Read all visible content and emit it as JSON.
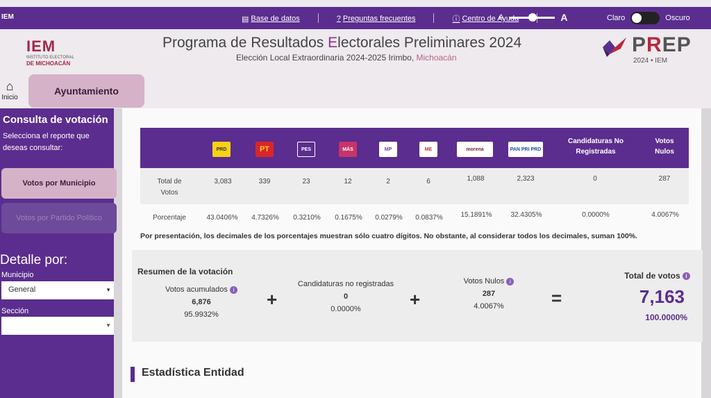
{
  "topbar": {
    "logo": "IEM",
    "links": [
      {
        "icon": "database-icon",
        "label": "Base de datos"
      },
      {
        "icon": "question-icon",
        "label": "Preguntas frecuentes"
      },
      {
        "icon": "info-icon",
        "label": "Centro de Ayuda"
      }
    ],
    "font_small": "A",
    "font_large": "A",
    "theme_light": "Claro",
    "theme_dark": "Oscuro"
  },
  "header": {
    "iem_logo": "IEM",
    "iem_small": "INSTITUTO ELECTORAL",
    "iem_mich": "DE MICHOACÁN",
    "title_pre": "Programa de Resultados ",
    "title_e": "E",
    "title_post": "lectorales Preliminares 2024",
    "subtitle": "Elección Local Extraordinaria 2024-2025 Irimbo, ",
    "subtitle_state": "Michoacán",
    "prep_p": "P",
    "prep_r": "R",
    "prep_ep": "EP",
    "prep_year": "2024 • IEM"
  },
  "nav": {
    "home_label": "Inicio",
    "ayuntamiento": "Ayuntamiento"
  },
  "sidebar": {
    "heading": "Consulta de votación",
    "prompt": "Selecciona el reporte que deseas consultar:",
    "btn_municipio": "Votos por Municipio",
    "btn_partido": "Votos por Partido Político",
    "detalle": "Detalle por:",
    "municipio_label": "Municipio",
    "municipio_value": "General",
    "seccion_label": "Sección",
    "seccion_value": ""
  },
  "table": {
    "parties": [
      {
        "label": "PRD",
        "bg": "#f7d117",
        "fg": "#333"
      },
      {
        "label": "PT",
        "bg": "#d9262b",
        "fg": "#f7d117"
      },
      {
        "label": "PES",
        "bg": "#5b2d8e",
        "fg": "#fff"
      },
      {
        "label": "MÁS",
        "bg": "#c7346a",
        "fg": "#fff"
      },
      {
        "label": "MP",
        "bg": "#ffffff",
        "fg": "#7a3f8d"
      },
      {
        "label": "ME",
        "bg": "#ffffff",
        "fg": "#c0304a"
      },
      {
        "label": "morena",
        "bg": "#ffffff",
        "fg": "#7a1f2b"
      },
      {
        "label": "PAN PRI PRD",
        "bg": "#ffffff",
        "fg": "#1a4fa0"
      }
    ],
    "col_no_reg": "Candidaturas No Registradas",
    "col_nulos": "Votos Nulos",
    "row1_label": "Total de Votos",
    "row1": [
      "3,083",
      "339",
      "23",
      "12",
      "2",
      "6",
      "1,088",
      "2,323",
      "0",
      "287"
    ],
    "row2_label": "Porcentaje",
    "row2": [
      "43.0406%",
      "4.7326%",
      "0.3210%",
      "0.1675%",
      "0.0279%",
      "0.0837%",
      "15.1891%",
      "32.4305%",
      "0.0000%",
      "4.0067%"
    ]
  },
  "note": "Por presentación, los decimales de los porcentajes muestran sólo cuatro dígitos. No obstante, al considerar todos los decimales, suman 100%.",
  "summary": {
    "title": "Resumen de la votación",
    "acum_label": "Votos acumulados",
    "acum_value": "6,876",
    "acum_pct": "95.9932%",
    "noreg_label": "Candidaturas no registradas",
    "noreg_value": "0",
    "noreg_pct": "0.0000%",
    "nulos_label": "Votos Nulos",
    "nulos_value": "287",
    "nulos_pct": "4.0067%",
    "plus": "+",
    "equals": "=",
    "total_label": "Total de votos",
    "total_value": "7,163",
    "total_pct": "100.0000%"
  },
  "estadistica": "Estadística Entidad"
}
